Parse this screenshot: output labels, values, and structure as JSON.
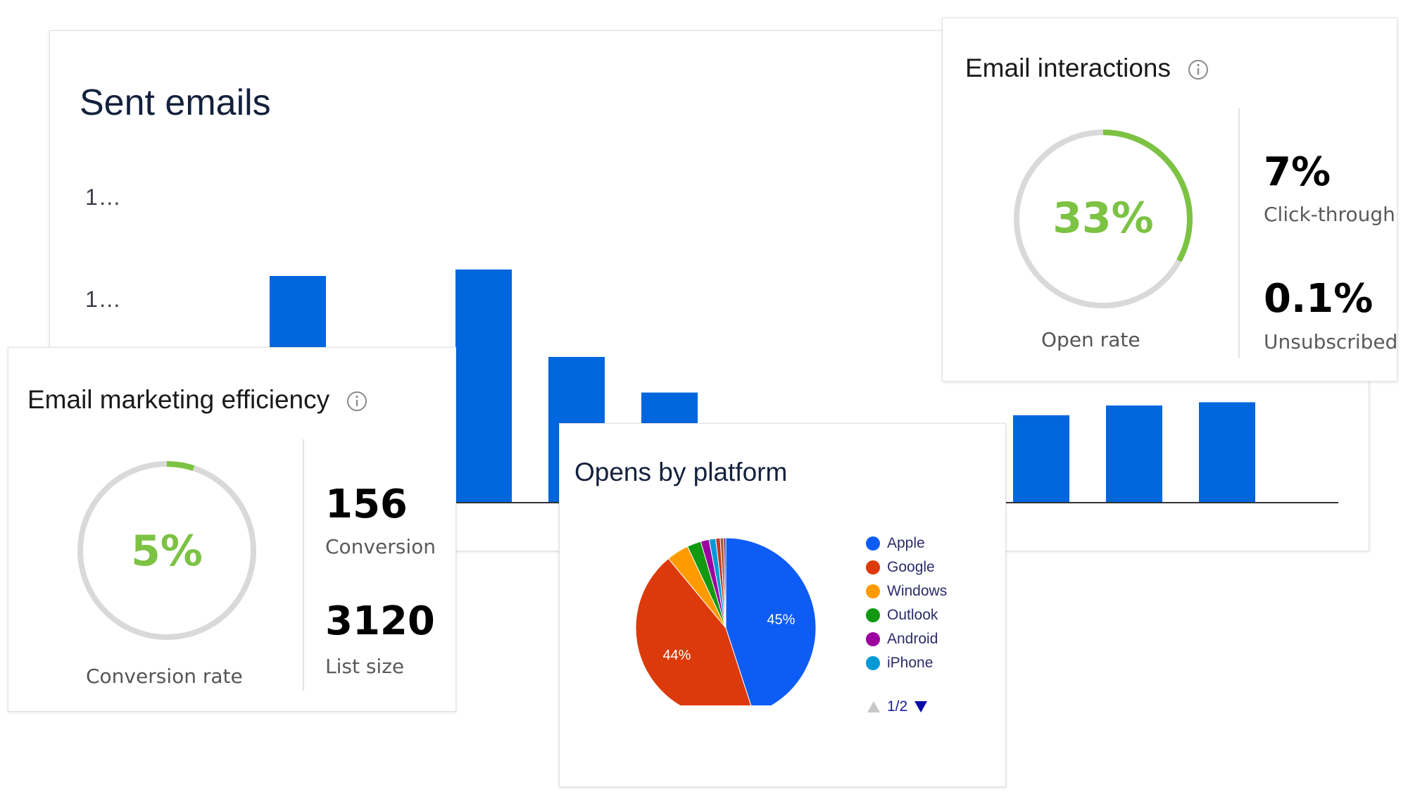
{
  "sent_emails": {
    "title": "Sent emails",
    "y_ticks": [
      "1…",
      "1…"
    ],
    "chart_data": {
      "type": "bar",
      "title": "Sent emails",
      "y_tick_labels": [
        "1…",
        "1…"
      ],
      "values_visible": [
        null,
        0.7,
        null,
        0.72,
        0.45,
        0.34,
        null,
        0.02,
        null,
        0.27,
        0.3,
        0.31
      ],
      "bar_color": "#0066dd",
      "grid": false,
      "note": ""
    }
  },
  "interactions": {
    "title": "Email interactions",
    "ring": {
      "value": "33%",
      "fraction": 0.33,
      "caption": "Open rate"
    },
    "stats": [
      {
        "value": "7%",
        "label": "Click-through"
      },
      {
        "value": "0.1%",
        "label": "Unsubscribed"
      }
    ]
  },
  "efficiency": {
    "title": "Email marketing efficiency",
    "ring": {
      "value": "5%",
      "fraction": 0.05,
      "caption": "Conversion rate"
    },
    "stats": [
      {
        "value": "156",
        "label": "Conversion"
      },
      {
        "value": "3120",
        "label": "List size"
      }
    ]
  },
  "platform": {
    "title": "Opens by platform",
    "pager": "1/2",
    "chart_data": {
      "type": "pie",
      "title": "Opens by platform",
      "slices": [
        {
          "label": "Apple",
          "value": 45,
          "color": "#0d5cf5",
          "shown_label": "45%"
        },
        {
          "label": "Google",
          "value": 44,
          "color": "#dc3a0b",
          "shown_label": "44%"
        },
        {
          "label": "Windows",
          "value": 4,
          "color": "#ff9b00",
          "shown_label": ""
        },
        {
          "label": "Outlook",
          "value": 2.5,
          "color": "#119a11",
          "shown_label": ""
        },
        {
          "label": "Android",
          "value": 1.5,
          "color": "#9c00a0",
          "shown_label": ""
        },
        {
          "label": "iPhone",
          "value": 1.2,
          "color": "#0099d6",
          "shown_label": ""
        },
        {
          "label": "",
          "value": 0.8,
          "color": "#c0392b",
          "shown_label": ""
        },
        {
          "label": "",
          "value": 0.6,
          "color": "#a05a2c",
          "shown_label": ""
        },
        {
          "label": "",
          "value": 0.4,
          "color": "#7b2d8e",
          "shown_label": ""
        }
      ],
      "legend": [
        "Apple",
        "Google",
        "Windows",
        "Outlook",
        "Android",
        "iPhone"
      ]
    }
  },
  "colors": {
    "bar_blue": "#0066dd",
    "ring_green": "#7cc243",
    "ring_track": "#d9d9d9",
    "axis": "#333333"
  }
}
